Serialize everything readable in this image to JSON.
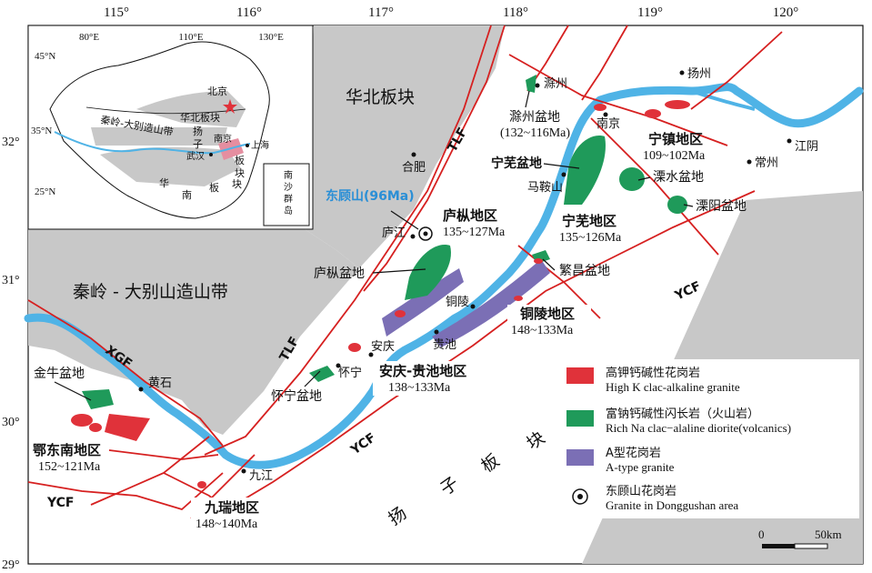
{
  "longitude_ticks": [
    "115°",
    "116°",
    "117°",
    "118°",
    "119°",
    "120°"
  ],
  "latitude_ticks": [
    "32°",
    "31°",
    "30°",
    "29°"
  ],
  "plates": {
    "north_china": "华北板块",
    "yangtze": [
      "扬",
      "子",
      "板",
      "块"
    ],
    "qinling_dabie": "秦岭 - 大别山造山带"
  },
  "faults": {
    "tlf": "TLF",
    "tlf2": "TLF",
    "ycf": "YCF",
    "ycf2": "YCF",
    "ycf3": "YCF",
    "xgf": "XGF"
  },
  "cities": {
    "chuzhou": "滁州",
    "yangzhou": "扬州",
    "nanjing": "南京",
    "jiangyin": "江阴",
    "changzhou": "常州",
    "hefei": "合肥",
    "maanshan": "马鞍山",
    "lujiang": "庐江",
    "tongling": "铜陵",
    "anqing": "安庆",
    "guichi": "贵池",
    "huaining": "怀宁",
    "huangshi": "黄石",
    "jiujiang": "九江"
  },
  "basins": {
    "chuzhou": "滁州盆地",
    "chuzhou_age": "(132~116Ma)",
    "ningwu": "宁芜盆地",
    "lishui": "溧水盆地",
    "liyang": "溧阳盆地",
    "luzong": "庐枞盆地",
    "fanchang": "繁昌盆地",
    "huaining": "怀宁盆地",
    "jinniu": "金牛盆地"
  },
  "districts": {
    "ningzhen": {
      "name": "宁镇地区",
      "age": "109~102Ma"
    },
    "luzong": {
      "name": "庐枞地区",
      "age": "135~127Ma"
    },
    "ningwu": {
      "name": "宁芜地区",
      "age": "135~126Ma"
    },
    "tongling": {
      "name": "铜陵地区",
      "age": "148~133Ma"
    },
    "anqing_guichi": {
      "name": "安庆-贵池地区",
      "age": "138~133Ma"
    },
    "edongnan": {
      "name": "鄂东南地区",
      "age": "152~121Ma"
    },
    "jiurui": {
      "name": "九瑞地区",
      "age": "148~140Ma"
    }
  },
  "donggushan": "东顾山(96Ma)",
  "legend": [
    {
      "zh": "高钾钙碱性花岗岩",
      "en": "High K clac-alkaline granite",
      "color": "#e0323a"
    },
    {
      "zh": "富钠钙碱性闪长岩（火山岩）",
      "en": "Rich Na clac−alaline diorite(volcanics)",
      "color": "#1f9a5a"
    },
    {
      "zh": "A型花岗岩",
      "en": "A-type granite",
      "color": "#7b6fb5"
    },
    {
      "zh": "东顾山花岗岩",
      "en": "Granite in Donggushan area",
      "color": "#ffffff"
    }
  ],
  "scale": {
    "zero": "0",
    "end": "50km"
  },
  "inset": {
    "lon_ticks": [
      "80°E",
      "110°E",
      "130°E"
    ],
    "lat_ticks": [
      "45°N",
      "35°N",
      "25°N"
    ],
    "beijing": "北京",
    "north_block": "华北板块",
    "orogen": "秦岭-大别造山带",
    "wuhan": "武汉",
    "nanjing": "南京",
    "shanghai": "上海",
    "yangzi_chars": [
      "扬",
      "子",
      "板",
      "块"
    ],
    "huanan_chars": [
      "华",
      "南",
      "板",
      "块"
    ],
    "south_sea": [
      "南",
      "沙",
      "群",
      "岛"
    ]
  },
  "colors": {
    "river": "#4fb3e6",
    "gray": "#c8c8c8",
    "fault": "#d62020",
    "border": "#d62020"
  }
}
